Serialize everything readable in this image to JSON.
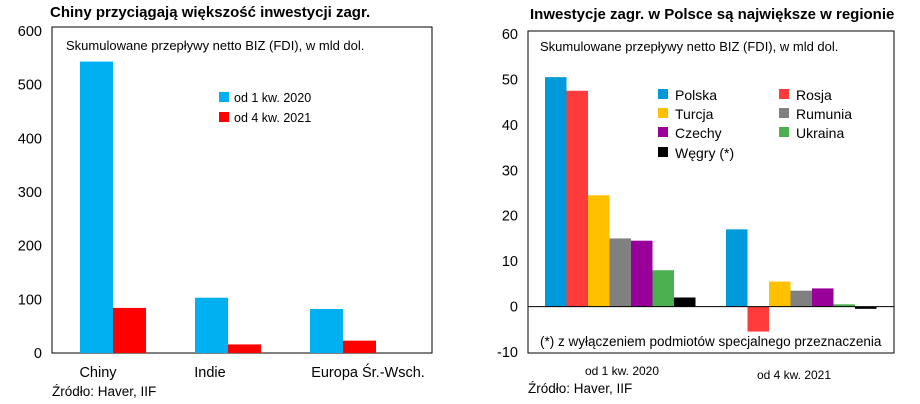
{
  "chart_data": [
    {
      "type": "bar",
      "title": "Chiny przyciągają większość inwestycji zagr.",
      "subtitle": "Skumulowane przepływy netto BIZ (FDI), w mld dol.",
      "categories": [
        "Chiny",
        "Indie",
        "Europa Śr.-Wsch."
      ],
      "series": [
        {
          "name": "od 1 kw. 2020",
          "color": "#00B0F0",
          "values": [
            543,
            103,
            82
          ]
        },
        {
          "name": "od 4 kw. 2021",
          "color": "#FF0000",
          "values": [
            84,
            16,
            23
          ]
        }
      ],
      "yticks": [
        0,
        100,
        200,
        300,
        400,
        500,
        600
      ],
      "ytick_labels": [
        "0",
        "100",
        "200",
        "300",
        "400",
        "500",
        "600"
      ],
      "ylim": [
        0,
        600
      ],
      "legend_position": "top-right",
      "source": "Źródło: Haver, IIF"
    },
    {
      "type": "bar",
      "title": "Inwestycje zagr. w Polsce są największe w regionie",
      "subtitle": "Skumulowane przepływy netto BIZ (FDI), w mld dol.",
      "categories": [
        "od 1 kw. 2020",
        "od 4 kw. 2021"
      ],
      "series": [
        {
          "name": "Polska",
          "color": "#0099DA",
          "values": [
            50.5,
            17
          ]
        },
        {
          "name": "Rosja",
          "color": "#FF3B3B",
          "values": [
            47.5,
            -5.5
          ]
        },
        {
          "name": "Turcja",
          "color": "#FFC000",
          "values": [
            24.5,
            5.5
          ]
        },
        {
          "name": "Rumunia",
          "color": "#808080",
          "values": [
            15,
            3.5
          ]
        },
        {
          "name": "Czechy",
          "color": "#990099",
          "values": [
            14.5,
            4
          ]
        },
        {
          "name": "Ukraina",
          "color": "#4CAF50",
          "values": [
            8,
            0.5
          ]
        },
        {
          "name": "Węgry (*)",
          "color": "#000000",
          "values": [
            2,
            -0.5
          ]
        }
      ],
      "yticks": [
        -10,
        0,
        10,
        20,
        30,
        40,
        50,
        60
      ],
      "ytick_labels": [
        "-10",
        "0",
        "10",
        "20",
        "30",
        "40",
        "50",
        "60"
      ],
      "ylim": [
        -10,
        60
      ],
      "legend_position": "top-right",
      "note": "(*) z wyłączeniem podmiotów specjalnego przeznaczenia",
      "source": "Źródło: Haver, IIF"
    }
  ]
}
